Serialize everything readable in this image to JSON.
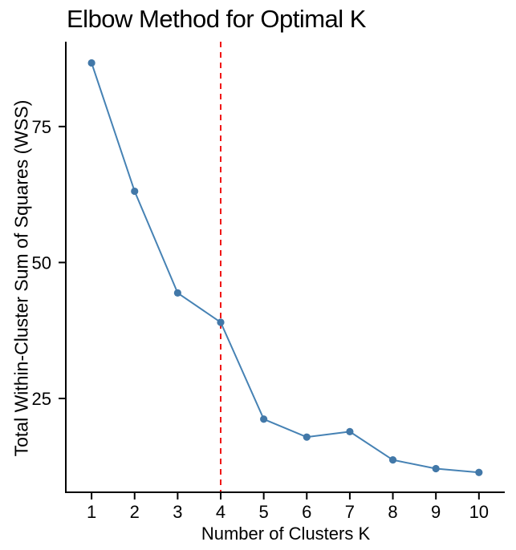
{
  "title": "Elbow Method for Optimal K",
  "chart_data": {
    "type": "line",
    "title": "Elbow Method for Optimal K",
    "xlabel": "Number of Clusters K",
    "ylabel": "Total Within-Cluster Sum of Squares (WSS)",
    "x": [
      1,
      2,
      3,
      4,
      5,
      6,
      7,
      8,
      9,
      10
    ],
    "series": [
      {
        "name": "WSS",
        "values": [
          86.7,
          63.1,
          44.4,
          39.0,
          21.2,
          17.9,
          18.9,
          13.7,
          12.1,
          11.4
        ]
      }
    ],
    "x_ticks": [
      "1",
      "2",
      "3",
      "4",
      "5",
      "6",
      "7",
      "8",
      "9",
      "10"
    ],
    "y_ticks": [
      25,
      50,
      75
    ],
    "xlim": [
      0.42,
      10.6
    ],
    "ylim": [
      7.9,
      90.6
    ],
    "grid": false,
    "legend": "none",
    "annotations": [
      {
        "type": "vline",
        "x": 4,
        "style": "dashed",
        "color": "#f01515",
        "meaning": "optimal-k"
      }
    ],
    "colors": {
      "line": "#4682b4",
      "marker": "#4278a8",
      "axis": "#000000",
      "text": "#000000",
      "vline": "#f01515",
      "background": "#ffffff"
    }
  }
}
